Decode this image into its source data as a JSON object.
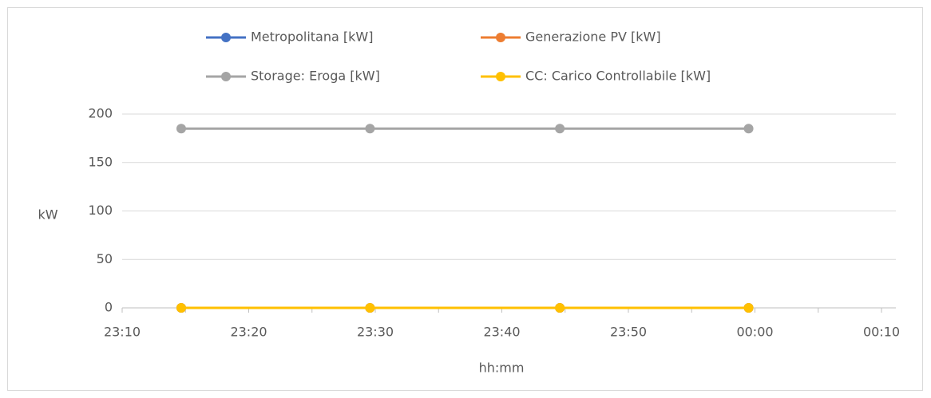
{
  "chart_data": {
    "type": "line",
    "x_label": "hh:mm",
    "y_label": "kW",
    "x": [
      "23:14:40",
      "23:29:35",
      "23:44:35",
      "23:59:30"
    ],
    "series": [
      {
        "name": "Metropolitana [kW]",
        "color": "#4472c4",
        "values": [
          0,
          0,
          0,
          0
        ]
      },
      {
        "name": "Generazione PV [kW]",
        "color": "#ed7d31",
        "values": [
          0,
          0,
          0,
          0
        ]
      },
      {
        "name": "Storage: Eroga [kW]",
        "color": "#a5a5a5",
        "values": [
          185,
          185,
          185,
          185
        ]
      },
      {
        "name": "CC: Carico Controllabile [kW]",
        "color": "#ffc000",
        "values": [
          0,
          0,
          0,
          0
        ]
      }
    ],
    "xlim": [
      "23:10",
      "00:10"
    ],
    "xticks": [
      "23:10",
      "23:20",
      "23:30",
      "23:40",
      "23:50",
      "00:00",
      "00:10"
    ],
    "ylim": [
      0,
      200
    ],
    "yticks": [
      0,
      50,
      100,
      150,
      200
    ],
    "grid": true,
    "legend": "top"
  }
}
